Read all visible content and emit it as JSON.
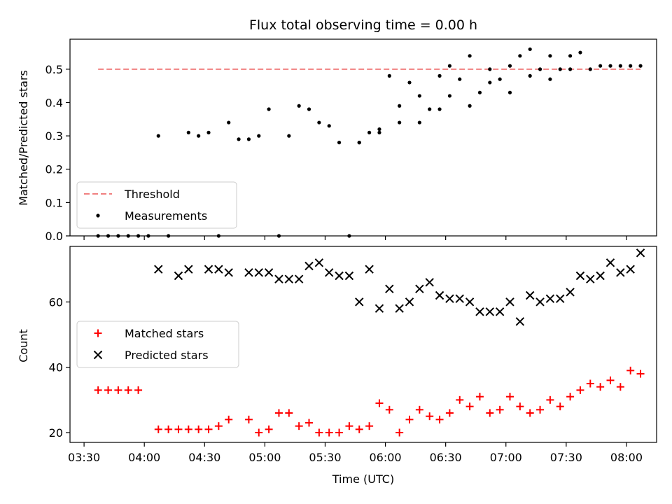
{
  "chart_data": {
    "title": "Flux total observing time = 0.00 h",
    "xlabel": "Time (UTC)",
    "x_tick_labels": [
      "03:30",
      "04:00",
      "04:30",
      "05:00",
      "05:30",
      "06:00",
      "06:30",
      "07:00",
      "07:30",
      "08:00"
    ],
    "x_ticks_minutes": [
      210,
      240,
      270,
      300,
      330,
      360,
      390,
      420,
      450,
      480
    ],
    "xlim_minutes": [
      203,
      495
    ],
    "panels": [
      {
        "type": "scatter",
        "ylabel": "Matched/Predicted stars",
        "ylim": [
          0,
          0.59
        ],
        "y_ticks": [
          0.0,
          0.1,
          0.2,
          0.3,
          0.4,
          0.5
        ],
        "y_tick_labels": [
          "0.0",
          "0.1",
          "0.2",
          "0.3",
          "0.4",
          "0.5"
        ],
        "legend_position": "lower-left",
        "threshold": {
          "name": "Threshold",
          "value": 0.5,
          "x_range_minutes": [
            217,
            487
          ],
          "color": "#f08080"
        },
        "series": [
          {
            "name": "Measurements",
            "marker": "dot",
            "color": "#000000",
            "x_minutes": [
              217,
              222,
              227,
              232,
              237,
              242,
              247,
              252,
              262,
              277,
              292,
              307,
              312,
              322,
              332,
              337,
              342,
              347,
              352,
              357,
              362,
              367,
              372,
              377,
              382,
              387,
              392,
              397,
              402,
              407,
              412,
              417,
              422,
              427,
              432,
              437,
              442,
              447,
              452,
              457,
              462,
              467,
              472,
              477,
              482,
              487
            ],
            "y": [
              0.0,
              0.0,
              0.0,
              0.0,
              0.0,
              0.0,
              0.3,
              0.0,
              0.31,
              0.0,
              0.29,
              0.0,
              0.3,
              0.38,
              0.33,
              0.28,
              0.0,
              0.28,
              0.31,
              0.32,
              0.48,
              0.34,
              0.46,
              0.42,
              0.38,
              0.48,
              0.51,
              0.47,
              0.54,
              0.43,
              0.5,
              0.47,
              0.51,
              0.54,
              0.56,
              0.5,
              0.54,
              0.5,
              0.54,
              0.55,
              0.5,
              0.51,
              0.51,
              0.51,
              0.51,
              0.51
            ]
          }
        ],
        "extra_points_x_minutes": [
          267,
          272,
          282,
          287,
          297,
          302,
          317,
          327,
          347,
          357,
          367,
          377,
          387,
          392,
          402,
          412,
          422,
          432,
          442,
          452
        ],
        "extra_points_y": [
          0.3,
          0.31,
          0.34,
          0.29,
          0.3,
          0.38,
          0.39,
          0.34,
          0.28,
          0.31,
          0.39,
          0.34,
          0.38,
          0.42,
          0.39,
          0.46,
          0.43,
          0.48,
          0.47,
          0.5
        ]
      },
      {
        "type": "scatter",
        "ylabel": "Count",
        "ylim": [
          17,
          77
        ],
        "y_ticks": [
          20,
          40,
          60
        ],
        "y_tick_labels": [
          "20",
          "40",
          "60"
        ],
        "legend_position": "center-left",
        "series": [
          {
            "name": "Matched stars",
            "marker": "plus",
            "color": "#ff0000",
            "x_minutes": [
              217,
              222,
              227,
              232,
              237,
              247,
              252,
              257,
              262,
              267,
              272,
              277,
              282,
              292,
              297,
              302,
              307,
              312,
              317,
              322,
              327,
              332,
              337,
              342,
              347,
              352,
              357,
              362,
              367,
              372,
              377,
              382,
              387,
              392,
              397,
              402,
              407,
              412,
              417,
              422,
              427,
              432,
              437,
              442,
              447,
              452,
              457,
              462,
              467,
              472,
              477,
              482,
              487
            ],
            "y": [
              33,
              33,
              33,
              33,
              33,
              21,
              21,
              21,
              21,
              21,
              21,
              22,
              24,
              24,
              20,
              21,
              26,
              26,
              22,
              23,
              20,
              20,
              20,
              22,
              21,
              22,
              29,
              27,
              20,
              24,
              27,
              25,
              24,
              26,
              30,
              28,
              31,
              26,
              27,
              31,
              28,
              26,
              27,
              30,
              28,
              31,
              33,
              35,
              34,
              36,
              34,
              39,
              38
            ]
          },
          {
            "name": "Predicted stars",
            "marker": "x",
            "color": "#000000",
            "x_minutes": [
              247,
              257,
              262,
              272,
              277,
              282,
              292,
              297,
              302,
              307,
              312,
              317,
              322,
              327,
              332,
              337,
              342,
              347,
              352,
              357,
              362,
              367,
              372,
              377,
              382,
              387,
              392,
              397,
              402,
              407,
              412,
              417,
              422,
              427,
              432,
              437,
              442,
              447,
              452,
              457,
              462,
              467,
              472,
              477,
              482,
              487
            ],
            "y": [
              70,
              68,
              70,
              70,
              70,
              69,
              69,
              69,
              69,
              67,
              67,
              67,
              71,
              72,
              69,
              68,
              68,
              60,
              70,
              58,
              64,
              58,
              60,
              64,
              66,
              62,
              61,
              61,
              60,
              57,
              57,
              57,
              60,
              54,
              62,
              60,
              61,
              61,
              63,
              68,
              67,
              68,
              72,
              69,
              70,
              75
            ]
          }
        ]
      }
    ]
  }
}
